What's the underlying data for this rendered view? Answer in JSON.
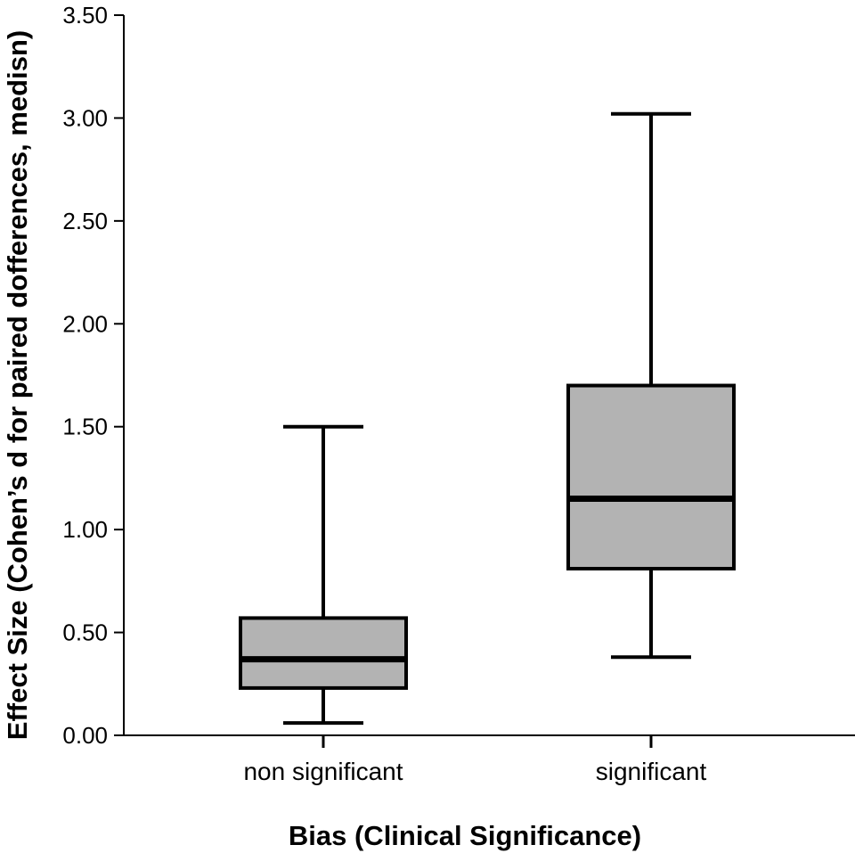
{
  "chart_data": {
    "type": "box",
    "xlabel": "Bias (Clinical Significance)",
    "ylabel": "Effect Size (Cohen’s d for paired dofferences, medisn)",
    "ylim": [
      0,
      3.5
    ],
    "yticks": [
      "0.00",
      "0.50",
      "1.00",
      "1.50",
      "2.00",
      "2.50",
      "3.00",
      "3.50"
    ],
    "categories": [
      "non significant",
      "significant"
    ],
    "boxes": [
      {
        "category": "non significant",
        "min": 0.06,
        "q1": 0.23,
        "median": 0.37,
        "q3": 0.57,
        "max": 1.5
      },
      {
        "category": "significant",
        "min": 0.38,
        "q1": 0.81,
        "median": 1.15,
        "q3": 1.7,
        "max": 3.02
      }
    ],
    "colors": {
      "box_fill": "#b3b3b3",
      "stroke": "#000000"
    }
  }
}
